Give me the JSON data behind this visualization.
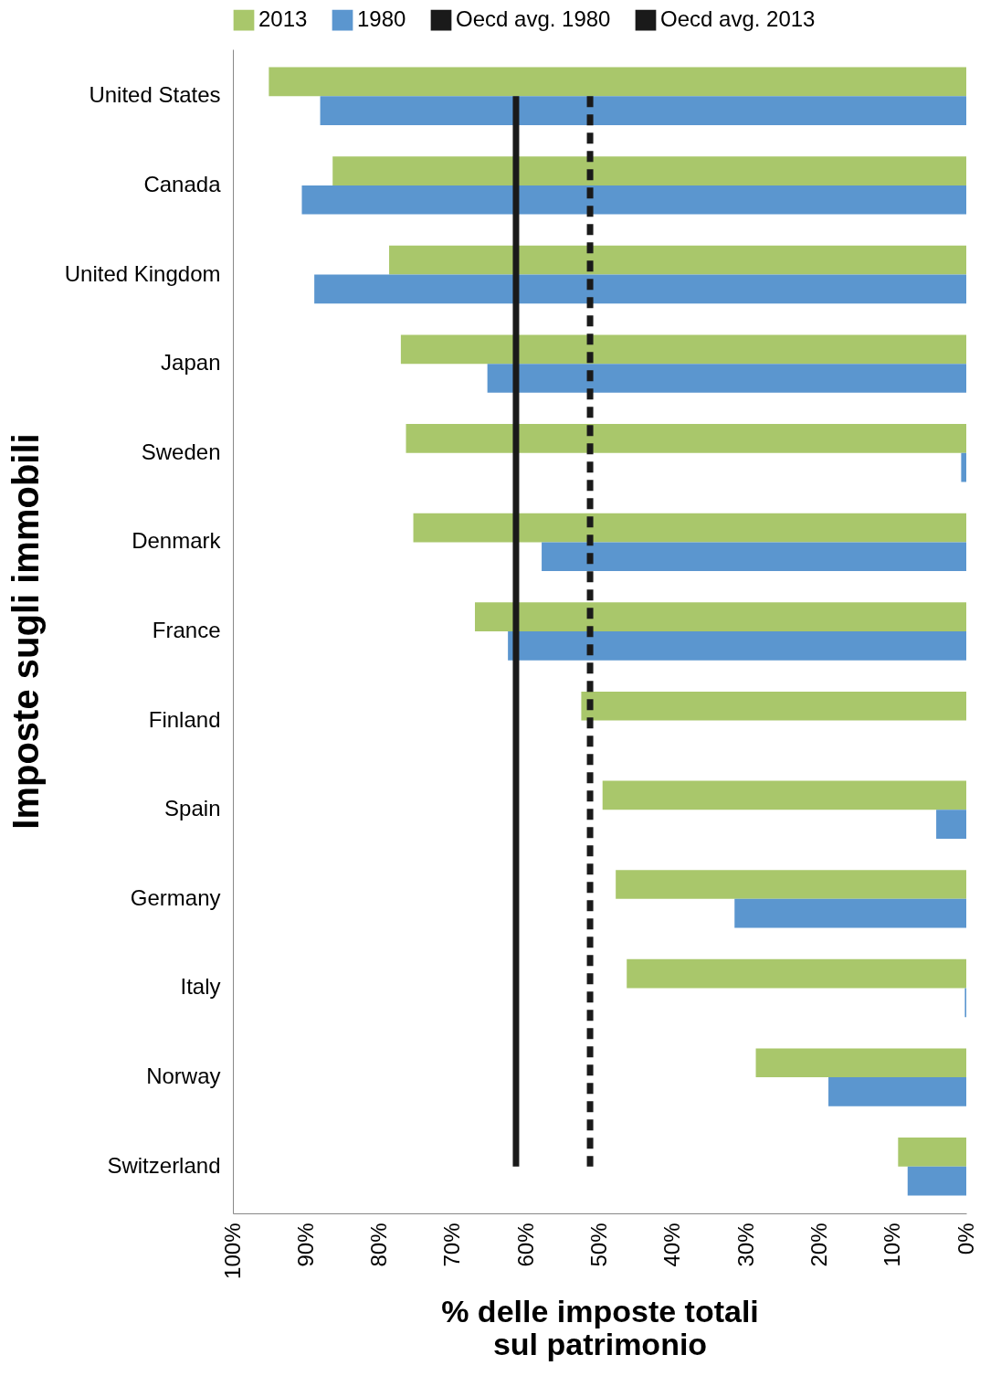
{
  "chart_data": {
    "type": "bar",
    "orientation": "horizontal",
    "title": "Imposte sugli immobili",
    "xlabel": "% delle imposte totali\nsul patrimonio",
    "categories": [
      "United States",
      "Canada",
      "United Kingdom",
      "Japan",
      "Sweden",
      "Denmark",
      "France",
      "Finland",
      "Spain",
      "Germany",
      "Italy",
      "Norway",
      "Switzerland"
    ],
    "series": [
      {
        "name": "2013",
        "color": "#a9c76b",
        "values": [
          95.1,
          86.4,
          78.7,
          77.1,
          76.4,
          75.4,
          67.0,
          52.5,
          49.6,
          47.8,
          46.3,
          28.7,
          9.3
        ]
      },
      {
        "name": "1980",
        "color": "#5b96cf",
        "values": [
          88.1,
          90.6,
          88.9,
          65.3,
          0.7,
          57.9,
          62.5,
          null,
          4.1,
          31.6,
          0.2,
          18.8,
          8.0
        ]
      },
      {
        "name": "Oecd avg. 1980",
        "type": "line",
        "line_style": "dashed",
        "color": "#1a1a1a",
        "values": [
          51.3,
          51.3,
          51.3,
          51.3,
          51.3,
          51.3,
          51.3,
          51.3,
          51.3,
          51.3,
          51.3,
          51.3,
          51.3
        ]
      },
      {
        "name": "Oecd avg. 2013",
        "type": "line",
        "line_style": "solid",
        "color": "#1a1a1a",
        "values": [
          61.4,
          61.4,
          61.4,
          61.4,
          61.4,
          61.4,
          61.4,
          61.4,
          61.4,
          61.4,
          61.4,
          61.4,
          61.4
        ]
      }
    ],
    "xlim": [
      100,
      0
    ],
    "xticks": [
      {
        "value": 100,
        "label": "100%"
      },
      {
        "value": 90,
        "label": "90%"
      },
      {
        "value": 80,
        "label": "80%"
      },
      {
        "value": 70,
        "label": "70%"
      },
      {
        "value": 60,
        "label": "60%"
      },
      {
        "value": 50,
        "label": "50%"
      },
      {
        "value": 40,
        "label": "40%"
      },
      {
        "value": 30,
        "label": "30%"
      },
      {
        "value": 20,
        "label": "20%"
      },
      {
        "value": 10,
        "label": "10%"
      },
      {
        "value": 0,
        "label": "0%"
      }
    ],
    "grid": false,
    "legend": "top"
  }
}
